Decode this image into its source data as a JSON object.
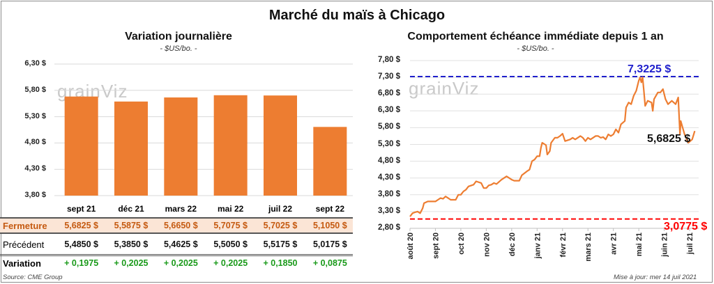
{
  "title": "Marché du maïs à Chicago",
  "source": "Source: CME Group",
  "updated": "Mise à jour: mer 14 juil 2021",
  "watermark": "grainViz",
  "colors": {
    "bar": "#ed7d31",
    "fermeture_bg": "#fbe5d6",
    "fermeture_text": "#c55a11",
    "variation": "#1a9a1a",
    "max": "#1f1fcc",
    "min": "#ff0000",
    "line": "#ed7d31"
  },
  "table": {
    "row_labels": {
      "fermeture": "Fermeture",
      "precedent": "Précédent",
      "variation": "Variation"
    },
    "fermeture": [
      "5,6825  $",
      "5,5875  $",
      "5,6650  $",
      "5,7075  $",
      "5,7025  $",
      "5,1050  $"
    ],
    "precedent": [
      "5,4850  $",
      "5,3850  $",
      "5,4625  $",
      "5,5050  $",
      "5,5175  $",
      "5,0175  $"
    ],
    "variation": [
      "+ 0,1975",
      "+ 0,2025",
      "+ 0,2025",
      "+ 0,2025",
      "+ 0,1850",
      "+ 0,0875"
    ]
  },
  "chart_data": [
    {
      "type": "bar",
      "title": "Variation journalière",
      "subtitle": "- $US/bo. -",
      "categories": [
        "sept 21",
        "déc 21",
        "mars 22",
        "mai 22",
        "juil 22",
        "sept 22"
      ],
      "values": [
        5.6825,
        5.5875,
        5.665,
        5.7075,
        5.7025,
        5.105
      ],
      "ylim": [
        3.8,
        6.3
      ],
      "yticks": [
        6.3,
        5.8,
        5.3,
        4.8,
        4.3,
        3.8
      ],
      "ytick_labels": [
        "6,30 $",
        "5,80 $",
        "5,30 $",
        "4,80 $",
        "4,30 $",
        "3,80 $"
      ]
    },
    {
      "type": "line",
      "title": "Comportement échéance immédiate depuis 1 an",
      "subtitle": "- $US/bo. -",
      "ylim": [
        2.8,
        7.8
      ],
      "yticks": [
        7.8,
        7.3,
        6.8,
        6.3,
        5.8,
        5.3,
        4.8,
        4.3,
        3.8,
        3.3,
        2.8
      ],
      "ytick_labels": [
        "7,80 $",
        "7,30 $",
        "6,80 $",
        "6,30 $",
        "5,80 $",
        "5,30 $",
        "4,80 $",
        "4,30 $",
        "3,80 $",
        "3,30 $",
        "2,80 $"
      ],
      "xtick_labels": [
        "août 20",
        "sept 20",
        "oct 20",
        "nov 20",
        "déc 20",
        "janv 21",
        "févr 21",
        "mars 21",
        "avr 21",
        "mai 21",
        "juin 21",
        "juil 21"
      ],
      "x_unit": "months since août 2020",
      "max": {
        "value": 7.3225,
        "label": "7,3225 $"
      },
      "min": {
        "value": 3.0775,
        "label": "3,0775 $"
      },
      "last": {
        "value": 5.6825,
        "label": "5,6825 $"
      },
      "points": [
        [
          0,
          3.15
        ],
        [
          0.1,
          3.25
        ],
        [
          0.2,
          3.28
        ],
        [
          0.3,
          3.3
        ],
        [
          0.4,
          3.25
        ],
        [
          0.5,
          3.4
        ],
        [
          0.55,
          3.55
        ],
        [
          0.7,
          3.6
        ],
        [
          0.9,
          3.6
        ],
        [
          1.0,
          3.6
        ],
        [
          1.1,
          3.65
        ],
        [
          1.2,
          3.7
        ],
        [
          1.3,
          3.68
        ],
        [
          1.4,
          3.75
        ],
        [
          1.5,
          3.7
        ],
        [
          1.6,
          3.65
        ],
        [
          1.8,
          3.65
        ],
        [
          1.9,
          3.8
        ],
        [
          2.0,
          3.8
        ],
        [
          2.1,
          3.9
        ],
        [
          2.2,
          3.95
        ],
        [
          2.3,
          4.05
        ],
        [
          2.5,
          4.1
        ],
        [
          2.6,
          4.2
        ],
        [
          2.8,
          4.15
        ],
        [
          2.9,
          4.0
        ],
        [
          3.0,
          4.0
        ],
        [
          3.1,
          4.08
        ],
        [
          3.2,
          4.1
        ],
        [
          3.3,
          4.15
        ],
        [
          3.4,
          4.12
        ],
        [
          3.6,
          4.25
        ],
        [
          3.7,
          4.3
        ],
        [
          3.8,
          4.35
        ],
        [
          3.9,
          4.3
        ],
        [
          4.0,
          4.25
        ],
        [
          4.1,
          4.22
        ],
        [
          4.3,
          4.22
        ],
        [
          4.4,
          4.38
        ],
        [
          4.6,
          4.5
        ],
        [
          4.7,
          4.55
        ],
        [
          4.8,
          4.8
        ],
        [
          4.9,
          4.85
        ],
        [
          5.0,
          4.95
        ],
        [
          5.1,
          4.95
        ],
        [
          5.15,
          5.2
        ],
        [
          5.2,
          5.35
        ],
        [
          5.35,
          5.28
        ],
        [
          5.4,
          5.0
        ],
        [
          5.5,
          5.1
        ],
        [
          5.55,
          5.35
        ],
        [
          5.7,
          5.5
        ],
        [
          5.8,
          5.5
        ],
        [
          5.9,
          5.55
        ],
        [
          6.0,
          5.62
        ],
        [
          6.1,
          5.4
        ],
        [
          6.3,
          5.45
        ],
        [
          6.4,
          5.5
        ],
        [
          6.5,
          5.45
        ],
        [
          6.7,
          5.55
        ],
        [
          6.8,
          5.5
        ],
        [
          6.9,
          5.4
        ],
        [
          7.0,
          5.5
        ],
        [
          7.1,
          5.45
        ],
        [
          7.3,
          5.55
        ],
        [
          7.4,
          5.55
        ],
        [
          7.5,
          5.5
        ],
        [
          7.6,
          5.52
        ],
        [
          7.7,
          5.45
        ],
        [
          7.8,
          5.6
        ],
        [
          7.9,
          5.55
        ],
        [
          8.0,
          5.6
        ],
        [
          8.1,
          5.75
        ],
        [
          8.2,
          5.65
        ],
        [
          8.3,
          5.9
        ],
        [
          8.45,
          6.0
        ],
        [
          8.5,
          6.4
        ],
        [
          8.6,
          6.55
        ],
        [
          8.7,
          6.5
        ],
        [
          8.8,
          6.75
        ],
        [
          8.9,
          6.9
        ],
        [
          9.0,
          7.2
        ],
        [
          9.05,
          7.3
        ],
        [
          9.1,
          7.15
        ],
        [
          9.15,
          7.3
        ],
        [
          9.2,
          6.9
        ],
        [
          9.25,
          6.45
        ],
        [
          9.35,
          6.6
        ],
        [
          9.5,
          6.55
        ],
        [
          9.55,
          6.3
        ],
        [
          9.6,
          6.65
        ],
        [
          9.75,
          6.85
        ],
        [
          9.85,
          6.85
        ],
        [
          9.95,
          6.95
        ],
        [
          10.05,
          6.65
        ],
        [
          10.15,
          6.5
        ],
        [
          10.3,
          6.6
        ],
        [
          10.45,
          6.5
        ],
        [
          10.55,
          6.7
        ],
        [
          10.62,
          5.6
        ],
        [
          10.65,
          6.0
        ],
        [
          10.8,
          5.6
        ],
        [
          10.95,
          5.35
        ],
        [
          11.1,
          5.45
        ],
        [
          11.2,
          5.7
        ]
      ]
    }
  ]
}
